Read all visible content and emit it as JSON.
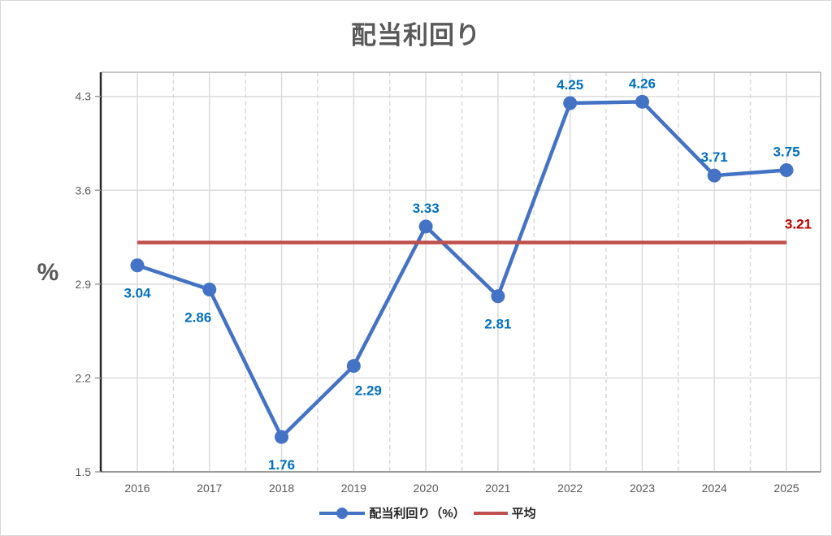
{
  "chart_data": {
    "type": "line",
    "title": "配当利回り",
    "ylabel": "%",
    "categories": [
      "2016",
      "2017",
      "2018",
      "2019",
      "2020",
      "2021",
      "2022",
      "2023",
      "2024",
      "2025"
    ],
    "series": [
      {
        "name": "配当利回り（%）",
        "type": "line",
        "marker": "circle",
        "color": "#4472C4",
        "label_color": "#0070C0",
        "values": [
          3.04,
          2.86,
          1.76,
          2.29,
          3.33,
          2.81,
          4.25,
          4.26,
          3.71,
          3.75
        ],
        "label_positions": [
          "below",
          "below-left",
          "below",
          "below-right",
          "above",
          "below",
          "above",
          "above",
          "above",
          "above"
        ]
      },
      {
        "name": "平均",
        "type": "constant-line",
        "color": "#C0504D",
        "label_color": "#C00000",
        "value": 3.21
      }
    ],
    "ylim": [
      1.5,
      4.48
    ],
    "yticks": [
      1.5,
      2.2,
      2.9,
      3.6,
      4.3
    ],
    "grid": {
      "horizontal": true,
      "vertical": "solid-at-categories-dashed-at-midpoints"
    },
    "legend_position": "bottom"
  }
}
